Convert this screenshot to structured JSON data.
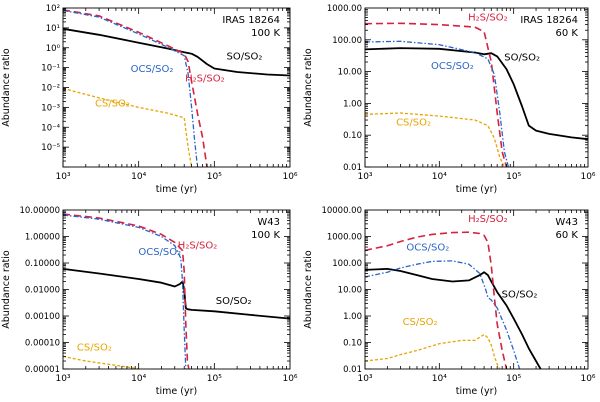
{
  "figure_caption_hidden": false,
  "colors": {
    "SO": "#000000",
    "H2S": "#d6213f",
    "OCS": "#2a64c8",
    "CS": "#e8a400"
  },
  "chart_data": [
    {
      "type": "line",
      "panel": "top-left",
      "title_lines": [
        "IRAS 18264",
        "100 K"
      ],
      "xlabel": "time (yr)",
      "ylabel": "Abundance ratio",
      "xscale": "log",
      "yscale": "log",
      "xlim": [
        1000,
        1000000
      ],
      "ylim": [
        1e-06,
        100
      ],
      "xtick_labels": [
        "10³",
        "10⁴",
        "10⁵",
        "10⁶"
      ],
      "xticks": [
        1000,
        10000,
        100000,
        1000000
      ],
      "yticks": [
        1e-05,
        0.0001,
        0.001,
        0.01,
        0.1,
        1,
        10,
        100
      ],
      "ytick_labels": [
        "10⁻⁵",
        "10⁻⁴",
        "10⁻³",
        "10⁻²",
        "10⁻¹",
        "10⁰",
        "10¹",
        "10²"
      ],
      "series": [
        {
          "name": "SO/SO₂",
          "key": "SO",
          "dash": "",
          "width": 1.8,
          "x": [
            1000,
            3000,
            10000,
            25000,
            40000,
            50000,
            60000,
            80000,
            100000,
            200000,
            500000,
            1000000
          ],
          "y": [
            9,
            4.5,
            1.8,
            0.9,
            0.6,
            0.5,
            0.35,
            0.15,
            0.09,
            0.06,
            0.045,
            0.04
          ]
        },
        {
          "name": "H₂S/SO₂",
          "key": "H2S",
          "dash": "7 4",
          "width": 1.6,
          "x": [
            1000,
            3000,
            10000,
            25000,
            40000,
            45000,
            50000,
            60000,
            70000,
            80000
          ],
          "y": [
            80,
            40,
            6,
            1.2,
            0.5,
            0.2,
            0.02,
            0.0005,
            3e-05,
            1e-06
          ]
        },
        {
          "name": "OCS/SO₂",
          "key": "OCS",
          "dash": "5 2 1.5 2",
          "width": 1.3,
          "x": [
            1000,
            3000,
            10000,
            25000,
            40000,
            45000,
            50000,
            55000,
            60000
          ],
          "y": [
            75,
            35,
            5,
            1.0,
            0.4,
            0.05,
            0.001,
            2e-05,
            1e-06
          ]
        },
        {
          "name": "CS/SO₂",
          "key": "CS",
          "dash": "3 2",
          "width": 1.3,
          "x": [
            1000,
            3000,
            10000,
            25000,
            40000,
            45000,
            50000
          ],
          "y": [
            0.009,
            0.003,
            0.001,
            0.0005,
            0.0003,
            1e-05,
            1e-06
          ]
        }
      ],
      "labels": [
        {
          "series": "SO",
          "text": "SO/SO₂",
          "x": 250000,
          "y": 0.25
        },
        {
          "series": "OCS",
          "text": "OCS/SO₂",
          "x": 15000,
          "y": 0.06
        },
        {
          "series": "H2S",
          "text": "H₂S/SO₂",
          "x": 75000,
          "y": 0.02
        },
        {
          "series": "CS",
          "text": "CS/SO₂",
          "x": 4500,
          "y": 0.0011
        }
      ]
    },
    {
      "type": "line",
      "panel": "top-right",
      "title_lines": [
        "IRAS 18264",
        "60 K"
      ],
      "xlabel": "time (yr)",
      "ylabel": "Abundance ratio",
      "xscale": "log",
      "yscale": "log",
      "xlim": [
        1000,
        1000000
      ],
      "ylim": [
        0.01,
        1000
      ],
      "xtick_labels": [
        "10³",
        "10⁴",
        "10⁵",
        "10⁶"
      ],
      "xticks": [
        1000,
        10000,
        100000,
        1000000
      ],
      "yticks": [
        0.01,
        0.1,
        1,
        10,
        100,
        1000
      ],
      "ytick_labels": [
        "0.01",
        "0.10",
        "1.00",
        "10.00",
        "100.00",
        "1000.00"
      ],
      "series": [
        {
          "name": "SO/SO₂",
          "key": "SO",
          "dash": "",
          "width": 1.8,
          "x": [
            1000,
            3000,
            10000,
            30000,
            40000,
            50000,
            60000,
            80000,
            100000,
            130000,
            160000,
            200000,
            300000,
            600000,
            1000000
          ],
          "y": [
            50,
            55,
            52,
            40,
            35,
            38,
            30,
            12,
            4,
            0.8,
            0.2,
            0.14,
            0.11,
            0.085,
            0.075
          ]
        },
        {
          "name": "H₂S/SO₂",
          "key": "H2S",
          "dash": "7 4",
          "width": 1.6,
          "x": [
            1000,
            3000,
            10000,
            30000,
            40000,
            50000,
            60000,
            70000,
            80000
          ],
          "y": [
            320,
            330,
            300,
            250,
            180,
            20,
            0.5,
            0.03,
            0.01
          ]
        },
        {
          "name": "OCS/SO₂",
          "key": "OCS",
          "dash": "5 2 1.5 2",
          "width": 1.3,
          "x": [
            1000,
            3000,
            10000,
            30000,
            45000,
            55000,
            65000,
            75000,
            85000
          ],
          "y": [
            85,
            90,
            70,
            40,
            25,
            8,
            0.5,
            0.03,
            0.01
          ]
        },
        {
          "name": "CS/SO₂",
          "key": "CS",
          "dash": "3 2",
          "width": 1.3,
          "x": [
            1000,
            3000,
            10000,
            30000,
            45000,
            55000,
            65000,
            75000
          ],
          "y": [
            0.45,
            0.5,
            0.4,
            0.3,
            0.2,
            0.08,
            0.02,
            0.01
          ]
        }
      ],
      "labels": [
        {
          "series": "H2S",
          "text": "H₂S/SO₂",
          "x": 45000,
          "y": 400
        },
        {
          "series": "SO",
          "text": "SO/SO₂",
          "x": 130000,
          "y": 22
        },
        {
          "series": "OCS",
          "text": "OCS/SO₂",
          "x": 15000,
          "y": 12
        },
        {
          "series": "CS",
          "text": "CS/SO₂",
          "x": 4500,
          "y": 0.2
        }
      ]
    },
    {
      "type": "line",
      "panel": "bottom-left",
      "title_lines": [
        "W43",
        "100 K"
      ],
      "xlabel": "time (yr)",
      "ylabel": "Abundance ratio",
      "xscale": "log",
      "yscale": "log",
      "xlim": [
        1000,
        1000000
      ],
      "ylim": [
        1e-05,
        10
      ],
      "xtick_labels": [
        "10³",
        "10⁴",
        "10⁵",
        "10⁶"
      ],
      "xticks": [
        1000,
        10000,
        100000,
        1000000
      ],
      "yticks": [
        1e-05,
        0.0001,
        0.001,
        0.01,
        0.1,
        1,
        10
      ],
      "ytick_labels": [
        "0.00001",
        "0.00010",
        "0.00100",
        "0.01000",
        "0.10000",
        "1.00000",
        "10.00000"
      ],
      "series": [
        {
          "name": "SO/SO₂",
          "key": "SO",
          "dash": "",
          "width": 1.8,
          "x": [
            1000,
            3000,
            10000,
            20000,
            30000,
            35000,
            38000,
            40000,
            42000,
            44000,
            50000,
            100000,
            300000,
            1000000
          ],
          "y": [
            0.06,
            0.04,
            0.025,
            0.018,
            0.013,
            0.016,
            0.02,
            0.01,
            0.002,
            0.0018,
            0.0017,
            0.0015,
            0.0011,
            0.0008
          ]
        },
        {
          "name": "H₂S/SO₂",
          "key": "H2S",
          "dash": "7 4",
          "width": 1.6,
          "x": [
            1000,
            3000,
            10000,
            20000,
            30000,
            38000,
            40000,
            42000,
            44000,
            46000
          ],
          "y": [
            7,
            5,
            2.5,
            1.2,
            0.6,
            0.3,
            0.05,
            0.0005,
            2e-05,
            1e-05
          ]
        },
        {
          "name": "OCS/SO₂",
          "key": "OCS",
          "dash": "5 2 1.5 2",
          "width": 1.3,
          "x": [
            1000,
            3000,
            10000,
            20000,
            30000,
            36000,
            38000,
            40000,
            42000
          ],
          "y": [
            6.5,
            4.5,
            2.2,
            1.0,
            0.45,
            0.15,
            0.02,
            0.0003,
            1e-05
          ]
        },
        {
          "name": "CS/SO₂",
          "key": "CS",
          "dash": "3 2",
          "width": 1.3,
          "x": [
            1000,
            2000,
            4000,
            7000,
            10000,
            12000
          ],
          "y": [
            3e-05,
            2e-05,
            1.5e-05,
            1.2e-05,
            1e-05,
            8e-06
          ]
        }
      ],
      "labels": [
        {
          "series": "H2S",
          "text": "H₂S/SO₂",
          "x": 60000,
          "y": 0.35
        },
        {
          "series": "OCS",
          "text": "OCS/SO₂",
          "x": 19000,
          "y": 0.2
        },
        {
          "series": "SO",
          "text": "SO/SO₂",
          "x": 180000,
          "y": 0.0028
        },
        {
          "series": "CS",
          "text": "CS/SO₂",
          "x": 2600,
          "y": 5e-05
        }
      ]
    },
    {
      "type": "line",
      "panel": "bottom-right",
      "title_lines": [
        "W43",
        "60 K"
      ],
      "xlabel": "time (yr)",
      "ylabel": "Abundance ratio",
      "xscale": "log",
      "yscale": "log",
      "xlim": [
        1000,
        1000000
      ],
      "ylim": [
        0.01,
        10000
      ],
      "xtick_labels": [
        "10³",
        "10⁴",
        "10⁵",
        "10⁶"
      ],
      "xticks": [
        1000,
        10000,
        100000,
        1000000
      ],
      "yticks": [
        0.01,
        0.1,
        1,
        10,
        100,
        1000,
        10000
      ],
      "ytick_labels": [
        "0.01",
        "0.10",
        "1.00",
        "10.00",
        "100.00",
        "1000.00",
        "10000.00"
      ],
      "series": [
        {
          "name": "SO/SO₂",
          "key": "SO",
          "dash": "",
          "width": 1.8,
          "x": [
            1000,
            2000,
            3000,
            5000,
            8000,
            15000,
            25000,
            35000,
            40000,
            45000,
            50000,
            60000,
            80000,
            100000,
            130000,
            160000,
            200000,
            230000
          ],
          "y": [
            55,
            60,
            50,
            35,
            25,
            20,
            22,
            35,
            45,
            35,
            20,
            8,
            2.5,
            0.8,
            0.2,
            0.06,
            0.02,
            0.01
          ]
        },
        {
          "name": "H₂S/SO₂",
          "key": "H2S",
          "dash": "7 4",
          "width": 1.6,
          "x": [
            1000,
            2000,
            3000,
            5000,
            8000,
            15000,
            25000,
            35000,
            40000,
            45000,
            50000,
            55000,
            60000,
            70000,
            80000
          ],
          "y": [
            300,
            450,
            650,
            950,
            1200,
            1400,
            1450,
            1300,
            1100,
            600,
            80,
            5,
            0.5,
            0.05,
            0.01
          ]
        },
        {
          "name": "OCS/SO₂",
          "key": "OCS",
          "dash": "5 2 1.5 2",
          "width": 1.3,
          "x": [
            1000,
            2000,
            3000,
            5000,
            8000,
            15000,
            25000,
            35000,
            42000,
            45000,
            50000,
            60000,
            80000,
            100000,
            120000
          ],
          "y": [
            30,
            45,
            65,
            90,
            115,
            120,
            90,
            40,
            10,
            5,
            4,
            2,
            0.3,
            0.05,
            0.01
          ]
        },
        {
          "name": "CS/SO₂",
          "key": "CS",
          "dash": "3 2",
          "width": 1.3,
          "x": [
            1000,
            2000,
            3000,
            5000,
            10000,
            20000,
            30000,
            40000,
            45000,
            50000,
            55000,
            60000,
            65000
          ],
          "y": [
            0.02,
            0.025,
            0.035,
            0.05,
            0.09,
            0.12,
            0.12,
            0.2,
            0.15,
            0.08,
            0.03,
            0.015,
            0.01
          ]
        }
      ],
      "labels": [
        {
          "series": "H2S",
          "text": "H₂S/SO₂",
          "x": 45000,
          "y": 3500
        },
        {
          "series": "OCS",
          "text": "OCS/SO₂",
          "x": 7000,
          "y": 300
        },
        {
          "series": "SO",
          "text": "SO/SO₂",
          "x": 120000,
          "y": 5
        },
        {
          "series": "CS",
          "text": "CS/SO₂",
          "x": 5500,
          "y": 0.45
        }
      ]
    }
  ]
}
